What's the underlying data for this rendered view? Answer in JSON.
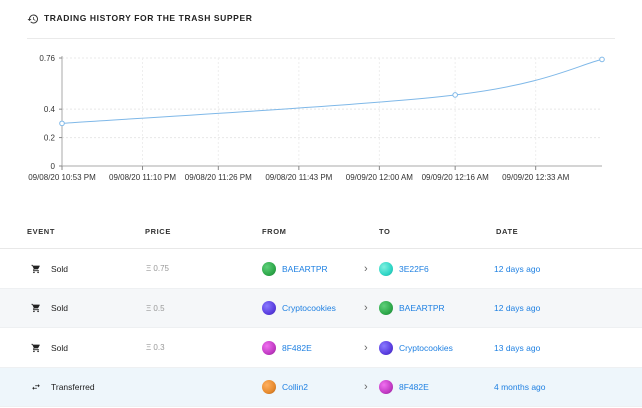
{
  "header": {
    "title": "TRADING HISTORY FOR THE TRASH SUPPER",
    "icon": "history-icon"
  },
  "chart_data": {
    "type": "line",
    "x": [
      "09/08/20 10:53 PM",
      "09/08/20 11:10 PM",
      "09/08/20 11:26 PM",
      "09/08/20 11:43 PM",
      "09/09/20 12:00 AM",
      "09/09/20 12:16 AM",
      "09/09/20 12:33 AM"
    ],
    "points": [
      {
        "x": "09/08/20 10:53 PM",
        "y": 0.3
      },
      {
        "x": "09/09/20 12:16 AM",
        "y": 0.5
      },
      {
        "x": "09/09/20 12:47 AM",
        "y": 0.75
      }
    ],
    "yticks": [
      "0",
      "0.2",
      "0.4",
      "0.76"
    ],
    "ylim": [
      0,
      0.76
    ],
    "grid": true,
    "line_color": "#7fb8e8"
  },
  "table": {
    "headers": {
      "event": "EVENT",
      "price": "PRICE",
      "from": "FROM",
      "to": "TO",
      "date": "DATE"
    },
    "rows": [
      {
        "event": "Sold",
        "event_icon": "cart-icon",
        "price": "Ξ 0.75",
        "from": "BAEARTPR",
        "from_color": "#2ea84a",
        "to": "3E22F6",
        "to_color": "#2fd6c6",
        "date": "12 days ago"
      },
      {
        "event": "Sold",
        "event_icon": "cart-icon",
        "price": "Ξ 0.5",
        "from": "Cryptocookies",
        "from_color": "#5a3ee0",
        "to": "BAEARTPR",
        "to_color": "#2ea84a",
        "date": "12 days ago"
      },
      {
        "event": "Sold",
        "event_icon": "cart-icon",
        "price": "Ξ 0.3",
        "from": "8F482E",
        "from_color": "#c23bc4",
        "to": "Cryptocookies",
        "to_color": "#5a3ee0",
        "date": "13 days ago"
      },
      {
        "event": "Transferred",
        "event_icon": "transfer-icon",
        "price": "",
        "from": "Collin2",
        "from_color": "#e68a2e",
        "to": "8F482E",
        "to_color": "#c23bc4",
        "date": "4 months ago"
      }
    ]
  }
}
